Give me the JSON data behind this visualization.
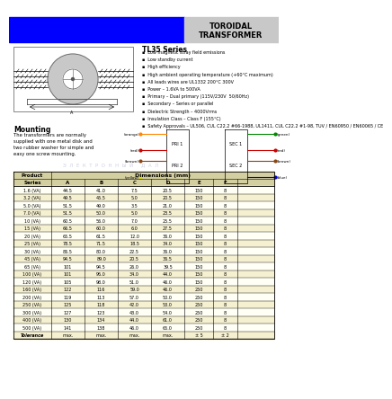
{
  "title_line1": "TOROIDAL",
  "title_line2": "TRANSFORMER",
  "series_title": "TL35 Series",
  "features": [
    "Low magnetic stray field emissions",
    "Low standby current",
    "High efficiency",
    "High ambient operating temperature (+60°C maximum)",
    "All leads wires are UL1332 200°C 300V",
    "Power – 1.6VA to 500VA",
    "Primary – Dual primary (115V/230V  50/60Hz)",
    "Secondary – Series or parallel",
    "Dielectric Strength – 4000Vrms",
    "Insulation Class – Class F (155°C)",
    "Safety Approvals – UL506, CUL C22.2 #66-1988, UL1411, CUL C22.2 #1-98, TUV / EN60950 / EN60065 / CE"
  ],
  "mounting_title": "Mounting",
  "mounting_text": "The transformers are normally supplied with one metal disk and two rubber washer for simple and easy one screw mounting.",
  "col_headers": [
    "A",
    "B",
    "C",
    "D",
    "E",
    "F"
  ],
  "rows": [
    [
      "1.6 (VA)",
      "44.5",
      "41.0",
      "7.5",
      "20.5",
      "150",
      "8"
    ],
    [
      "3.2 (VA)",
      "49.5",
      "45.5",
      "5.0",
      "20.5",
      "150",
      "8"
    ],
    [
      "5.0 (VA)",
      "51.5",
      "49.0",
      "3.5",
      "21.0",
      "150",
      "8"
    ],
    [
      "7.0 (VA)",
      "51.5",
      "50.0",
      "5.0",
      "23.5",
      "150",
      "8"
    ],
    [
      "10 (VA)",
      "60.5",
      "56.0",
      "7.0",
      "25.5",
      "150",
      "8"
    ],
    [
      "15 (VA)",
      "66.5",
      "60.0",
      "6.0",
      "27.5",
      "150",
      "8"
    ],
    [
      "20 (VA)",
      "65.5",
      "61.5",
      "12.0",
      "36.0",
      "150",
      "8"
    ],
    [
      "25 (VA)",
      "78.5",
      "71.5",
      "18.5",
      "34.0",
      "150",
      "8"
    ],
    [
      "30 (VA)",
      "86.5",
      "80.0",
      "22.5",
      "36.0",
      "150",
      "8"
    ],
    [
      "45 (VA)",
      "94.5",
      "89.0",
      "20.5",
      "36.5",
      "150",
      "8"
    ],
    [
      "65 (VA)",
      "101",
      "94.5",
      "26.0",
      "39.5",
      "150",
      "8"
    ],
    [
      "100 (VA)",
      "101",
      "96.0",
      "34.0",
      "44.0",
      "150",
      "8"
    ],
    [
      "120 (VA)",
      "105",
      "98.0",
      "51.0",
      "46.0",
      "150",
      "8"
    ],
    [
      "160 (VA)",
      "122",
      "116",
      "59.0",
      "46.0",
      "250",
      "8"
    ],
    [
      "200 (VA)",
      "119",
      "113",
      "57.0",
      "50.0",
      "250",
      "8"
    ],
    [
      "250 (VA)",
      "125",
      "118",
      "42.0",
      "53.0",
      "250",
      "8"
    ],
    [
      "300 (VA)",
      "127",
      "123",
      "43.0",
      "54.0",
      "250",
      "8"
    ],
    [
      "400 (VA)",
      "130",
      "134",
      "44.0",
      "61.0",
      "250",
      "8"
    ],
    [
      "500 (VA)",
      "141",
      "138",
      "46.0",
      "65.0",
      "250",
      "8"
    ],
    [
      "Tolerance",
      "max.",
      "max.",
      "max.",
      "max.",
      "± 5",
      "± 2"
    ]
  ],
  "bg_color": "#f5f0d0",
  "header_color": "#d4cfa0",
  "blue_color": "#0000ff",
  "gray_color": "#c8c8c8",
  "white": "#ffffff"
}
